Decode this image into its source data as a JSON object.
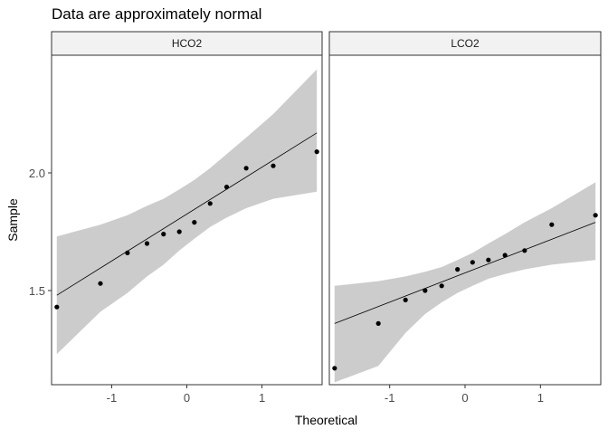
{
  "chart_data": {
    "type": "scatter",
    "title": "Data are approximately normal",
    "xlabel": "Theoretical",
    "ylabel": "Sample",
    "xlim": [
      -1.8,
      1.8
    ],
    "ylim": [
      1.1,
      2.5
    ],
    "x_ticks": [
      -1,
      0,
      1
    ],
    "x_tick_labels": [
      "-1",
      "0",
      "1"
    ],
    "y_ticks": [
      1.5,
      2.0
    ],
    "y_tick_labels": [
      "1.5",
      "2.0"
    ],
    "grid": false,
    "facets": [
      {
        "name": "HCO2",
        "points": [
          {
            "x": -1.73,
            "y": 1.43
          },
          {
            "x": -1.15,
            "y": 1.53
          },
          {
            "x": -0.79,
            "y": 1.66
          },
          {
            "x": -0.53,
            "y": 1.7
          },
          {
            "x": -0.31,
            "y": 1.74
          },
          {
            "x": -0.1,
            "y": 1.75
          },
          {
            "x": 0.1,
            "y": 1.79
          },
          {
            "x": 0.31,
            "y": 1.87
          },
          {
            "x": 0.53,
            "y": 1.94
          },
          {
            "x": 0.79,
            "y": 2.02
          },
          {
            "x": 1.15,
            "y": 2.03
          },
          {
            "x": 1.73,
            "y": 2.09
          }
        ],
        "line": {
          "x": [
            -1.73,
            1.73
          ],
          "y": [
            1.48,
            2.17
          ]
        },
        "band": {
          "x": [
            -1.73,
            -1.15,
            -0.79,
            -0.53,
            -0.31,
            -0.1,
            0.1,
            0.31,
            0.53,
            0.79,
            1.15,
            1.73
          ],
          "upper": [
            1.73,
            1.78,
            1.82,
            1.86,
            1.89,
            1.93,
            1.97,
            2.02,
            2.08,
            2.15,
            2.25,
            2.44
          ],
          "lower": [
            1.23,
            1.41,
            1.49,
            1.56,
            1.61,
            1.67,
            1.72,
            1.77,
            1.81,
            1.85,
            1.89,
            1.92
          ]
        }
      },
      {
        "name": "LCO2",
        "points": [
          {
            "x": -1.73,
            "y": 1.17
          },
          {
            "x": -1.15,
            "y": 1.36
          },
          {
            "x": -0.79,
            "y": 1.46
          },
          {
            "x": -0.53,
            "y": 1.5
          },
          {
            "x": -0.31,
            "y": 1.52
          },
          {
            "x": -0.1,
            "y": 1.59
          },
          {
            "x": 0.1,
            "y": 1.62
          },
          {
            "x": 0.31,
            "y": 1.63
          },
          {
            "x": 0.53,
            "y": 1.65
          },
          {
            "x": 0.79,
            "y": 1.67
          },
          {
            "x": 1.15,
            "y": 1.78
          },
          {
            "x": 1.73,
            "y": 1.82
          }
        ],
        "line": {
          "x": [
            -1.73,
            1.73
          ],
          "y": [
            1.36,
            1.79
          ]
        },
        "band": {
          "x": [
            -1.73,
            -1.15,
            -0.79,
            -0.53,
            -0.31,
            -0.1,
            0.1,
            0.31,
            0.53,
            0.79,
            1.15,
            1.73
          ],
          "upper": [
            1.52,
            1.54,
            1.56,
            1.58,
            1.6,
            1.63,
            1.66,
            1.7,
            1.74,
            1.79,
            1.85,
            1.96
          ],
          "lower": [
            1.11,
            1.18,
            1.32,
            1.4,
            1.45,
            1.49,
            1.52,
            1.55,
            1.57,
            1.59,
            1.61,
            1.63
          ]
        }
      }
    ],
    "colors": {
      "point": "#000000",
      "line": "#000000",
      "band": "#cccccc",
      "strip_fill": "#f2f2f2",
      "border": "#333333",
      "tick_text": "#4d4d4d"
    }
  }
}
